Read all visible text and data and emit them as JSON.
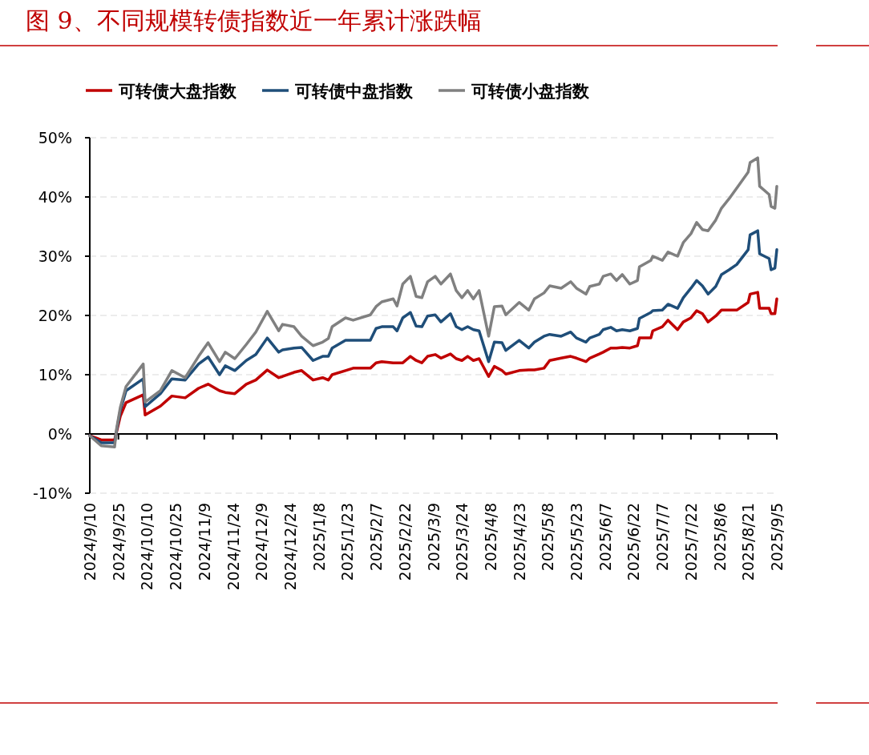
{
  "chart_data": {
    "type": "line",
    "title": "图 9、不同规模转债指数近一年累计涨跌幅",
    "x": [
      "2024-09-10",
      "2024-09-16",
      "2024-09-23",
      "2024-09-24",
      "2024-09-26",
      "2024-09-29",
      "2024-10-08",
      "2024-10-09",
      "2024-10-17",
      "2024-10-23",
      "2024-10-30",
      "2024-11-06",
      "2024-11-11",
      "2024-11-17",
      "2024-11-20",
      "2024-11-25",
      "2024-12-01",
      "2024-12-06",
      "2024-12-12",
      "2024-12-18",
      "2024-12-20",
      "2024-12-26",
      "2024-12-30",
      "2025-01-05",
      "2025-01-10",
      "2025-01-13",
      "2025-01-15",
      "2025-01-22",
      "2025-01-26",
      "2025-02-04",
      "2025-02-07",
      "2025-02-10",
      "2025-02-16",
      "2025-02-18",
      "2025-02-21",
      "2025-02-25",
      "2025-02-28",
      "2025-03-03",
      "2025-03-06",
      "2025-03-10",
      "2025-03-13",
      "2025-03-18",
      "2025-03-21",
      "2025-03-24",
      "2025-03-27",
      "2025-03-30",
      "2025-04-02",
      "2025-04-07",
      "2025-04-10",
      "2025-04-14",
      "2025-04-16",
      "2025-04-23",
      "2025-04-28",
      "2025-05-01",
      "2025-05-06",
      "2025-05-09",
      "2025-05-15",
      "2025-05-20",
      "2025-05-23",
      "2025-05-28",
      "2025-05-30",
      "2025-06-04",
      "2025-06-06",
      "2025-06-10",
      "2025-06-13",
      "2025-06-16",
      "2025-06-20",
      "2025-06-24",
      "2025-06-25",
      "2025-07-01",
      "2025-07-02",
      "2025-07-07",
      "2025-07-10",
      "2025-07-15",
      "2025-07-18",
      "2025-07-22",
      "2025-07-25",
      "2025-07-28",
      "2025-07-31",
      "2025-08-04",
      "2025-08-07",
      "2025-08-11",
      "2025-08-15",
      "2025-08-21",
      "2025-08-22",
      "2025-08-26",
      "2025-08-27",
      "2025-09-01",
      "2025-09-02",
      "2025-09-04",
      "2025-09-05"
    ],
    "series": [
      {
        "name": "可转债大盘指数",
        "color": "#c00000",
        "values": [
          -0.3,
          -1.0,
          -1.0,
          0.3,
          3.0,
          5.3,
          6.6,
          3.2,
          4.7,
          6.4,
          6.1,
          7.7,
          8.4,
          7.3,
          7.0,
          6.8,
          8.4,
          9.1,
          10.8,
          9.5,
          9.7,
          10.4,
          10.7,
          9.1,
          9.5,
          9.1,
          10.0,
          10.7,
          11.1,
          11.1,
          12.0,
          12.2,
          12.0,
          12.0,
          12.0,
          13.1,
          12.4,
          12.0,
          13.1,
          13.4,
          12.8,
          13.5,
          12.7,
          12.4,
          13.1,
          12.4,
          12.7,
          9.7,
          11.4,
          10.7,
          10.1,
          10.7,
          10.8,
          10.8,
          11.1,
          12.4,
          12.8,
          13.1,
          12.8,
          12.2,
          12.8,
          13.5,
          13.8,
          14.5,
          14.5,
          14.6,
          14.5,
          14.9,
          16.2,
          16.2,
          17.4,
          18.1,
          19.2,
          17.6,
          18.9,
          19.6,
          20.8,
          20.3,
          18.9,
          19.9,
          20.9,
          20.9,
          20.9,
          22.2,
          23.6,
          23.9,
          21.2,
          21.2,
          20.3,
          20.3,
          22.8
        ]
      },
      {
        "name": "可转债中盘指数",
        "color": "#1f4e79",
        "values": [
          -0.3,
          -1.5,
          -1.5,
          0.5,
          4.0,
          7.3,
          9.3,
          4.6,
          6.8,
          9.3,
          9.1,
          11.8,
          13.0,
          10.0,
          11.5,
          10.7,
          12.4,
          13.4,
          16.2,
          13.8,
          14.2,
          14.5,
          14.6,
          12.4,
          13.1,
          13.1,
          14.5,
          15.8,
          15.8,
          15.8,
          17.8,
          18.1,
          18.1,
          17.4,
          19.6,
          20.5,
          18.2,
          18.1,
          19.9,
          20.1,
          18.9,
          20.3,
          18.1,
          17.6,
          18.1,
          17.6,
          17.4,
          12.2,
          15.5,
          15.4,
          14.1,
          15.8,
          14.5,
          15.5,
          16.5,
          16.8,
          16.5,
          17.2,
          16.2,
          15.5,
          16.2,
          16.8,
          17.6,
          18.0,
          17.4,
          17.6,
          17.4,
          17.8,
          19.5,
          20.5,
          20.8,
          20.9,
          21.9,
          21.2,
          23.0,
          24.6,
          25.9,
          25.0,
          23.6,
          24.9,
          26.9,
          27.7,
          28.6,
          31.1,
          33.6,
          34.3,
          30.4,
          29.6,
          27.7,
          28.0,
          31.1
        ]
      },
      {
        "name": "可转债小盘指数",
        "color": "#808080",
        "values": [
          -0.3,
          -2.0,
          -2.2,
          0.8,
          4.5,
          8.0,
          11.8,
          5.4,
          7.3,
          10.7,
          9.5,
          13.1,
          15.4,
          12.2,
          13.8,
          12.7,
          15.1,
          17.2,
          20.7,
          17.4,
          18.5,
          18.1,
          16.5,
          14.9,
          15.5,
          16.1,
          18.1,
          19.6,
          19.2,
          20.1,
          21.5,
          22.3,
          22.8,
          21.6,
          25.3,
          26.6,
          23.2,
          23.0,
          25.7,
          26.6,
          25.3,
          27.0,
          24.2,
          23.0,
          24.2,
          22.8,
          24.2,
          16.5,
          21.5,
          21.6,
          20.1,
          22.2,
          20.9,
          22.8,
          23.8,
          25.0,
          24.6,
          25.7,
          24.6,
          23.6,
          24.9,
          25.3,
          26.6,
          27.0,
          25.9,
          26.9,
          25.3,
          25.9,
          28.2,
          29.3,
          30.0,
          29.3,
          30.7,
          30.0,
          32.3,
          33.8,
          35.7,
          34.5,
          34.3,
          36.1,
          38.1,
          39.7,
          41.5,
          44.2,
          45.8,
          46.6,
          41.8,
          40.4,
          38.4,
          38.1,
          41.8
        ]
      }
    ],
    "xlim": [
      "2024-09-10",
      "2025-09-05"
    ],
    "xticks": [
      {
        "value": "2024-09-10",
        "label": "2024/9/10"
      },
      {
        "value": "2024-09-25",
        "label": "2024/9/25"
      },
      {
        "value": "2024-10-10",
        "label": "2024/10/10"
      },
      {
        "value": "2024-10-25",
        "label": "2024/10/25"
      },
      {
        "value": "2024-11-09",
        "label": "2024/11/9"
      },
      {
        "value": "2024-11-24",
        "label": "2024/11/24"
      },
      {
        "value": "2024-12-09",
        "label": "2024/12/9"
      },
      {
        "value": "2024-12-24",
        "label": "2024/12/24"
      },
      {
        "value": "2025-01-08",
        "label": "2025/1/8"
      },
      {
        "value": "2025-01-23",
        "label": "2025/1/23"
      },
      {
        "value": "2025-02-07",
        "label": "2025/2/7"
      },
      {
        "value": "2025-02-22",
        "label": "2025/2/22"
      },
      {
        "value": "2025-03-09",
        "label": "2025/3/9"
      },
      {
        "value": "2025-03-24",
        "label": "2025/3/24"
      },
      {
        "value": "2025-04-08",
        "label": "2025/4/8"
      },
      {
        "value": "2025-04-23",
        "label": "2025/4/23"
      },
      {
        "value": "2025-05-08",
        "label": "2025/5/8"
      },
      {
        "value": "2025-05-23",
        "label": "2025/5/23"
      },
      {
        "value": "2025-06-07",
        "label": "2025/6/7"
      },
      {
        "value": "2025-06-22",
        "label": "2025/6/22"
      },
      {
        "value": "2025-07-07",
        "label": "2025/7/7"
      },
      {
        "value": "2025-07-22",
        "label": "2025/7/22"
      },
      {
        "value": "2025-08-06",
        "label": "2025/8/6"
      },
      {
        "value": "2025-08-21",
        "label": "2025/8/21"
      },
      {
        "value": "2025-09-05",
        "label": "2025/9/5"
      }
    ],
    "ylim": [
      -10,
      50
    ],
    "yticks": [
      {
        "value": -10,
        "label": "-10%"
      },
      {
        "value": 0,
        "label": "0%"
      },
      {
        "value": 10,
        "label": "10%"
      },
      {
        "value": 20,
        "label": "20%"
      },
      {
        "value": 30,
        "label": "30%"
      },
      {
        "value": 40,
        "label": "40%"
      },
      {
        "value": 50,
        "label": "50%"
      }
    ],
    "grid": "y",
    "legend": "top",
    "marker": "none",
    "line_style": "solid"
  }
}
